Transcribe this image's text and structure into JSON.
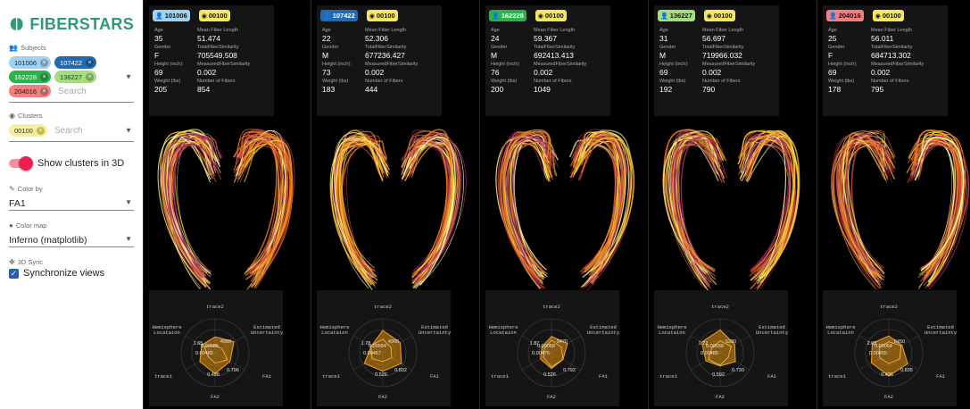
{
  "app": {
    "title": "FIBERSTARS"
  },
  "sidebar": {
    "subjects": {
      "label": "Subjects",
      "chips": [
        {
          "label": "101006",
          "color": "#9fd1f0"
        },
        {
          "label": "107422",
          "color": "#1f6ab0"
        },
        {
          "label": "162228",
          "color": "#2bb24c"
        },
        {
          "label": "136227",
          "color": "#a6dd7c"
        },
        {
          "label": "204016",
          "color": "#f08080"
        }
      ],
      "search_placeholder": "Search"
    },
    "clusters": {
      "label": "Clusters",
      "chips": [
        {
          "label": "00100",
          "color": "#f5f0a0"
        }
      ],
      "search_placeholder": "Search"
    },
    "toggle_3d": {
      "label": "Show clusters in 3D",
      "on": true
    },
    "color_by": {
      "label": "Color by",
      "value": "FA1"
    },
    "color_map": {
      "label": "Color map",
      "value": "Inferno (matplotlib)"
    },
    "sync": {
      "label": "3D Sync",
      "checkbox_label": "Synchronize views",
      "checked": true
    }
  },
  "stat_labels": {
    "age": "Age",
    "gender": "Gender",
    "height": "Height (inch):",
    "weight": "Weight (lbs)",
    "mean_len": "Mean Fiber Length",
    "total_sim": "TotalFiberSimilarity",
    "meas_sim": "MeasuredFiberSimilarity",
    "num_fibers": "Number of Fibers"
  },
  "radar_axes": {
    "top": "trace2",
    "top_right": [
      "Estimated",
      "Uncertainty"
    ],
    "top_left": [
      "Hemisphere",
      "Locataion"
    ],
    "right": "FA1",
    "left": "trace1",
    "bottom": "FA2"
  },
  "panels": [
    {
      "subject": "101006",
      "subject_color": "#9fd1f0",
      "cluster": "00100",
      "cluster_color": "#f5e663",
      "age": "35",
      "gender": "F",
      "height": "69",
      "weight": "205",
      "mean_len": "51.474",
      "total_sim": "705549.508",
      "meas_sim": "0.002",
      "num_fibers": "854",
      "radar_labels": [
        "1.65",
        "0.00585",
        "4980",
        "0.00485",
        "0.796",
        "0.498"
      ]
    },
    {
      "subject": "107422",
      "subject_color": "#1f6ab0",
      "cluster": "00100",
      "cluster_color": "#f5e663",
      "age": "22",
      "gender": "M",
      "height": "73",
      "weight": "183",
      "mean_len": "52.306",
      "total_sim": "677236.427",
      "meas_sim": "0.002",
      "num_fibers": "444",
      "radar_labels": [
        "1.78",
        "0.00584",
        "4900",
        "0.00467",
        "0.802",
        "0.526"
      ]
    },
    {
      "subject": "162228",
      "subject_color": "#2bb24c",
      "cluster": "00100",
      "cluster_color": "#f5e663",
      "age": "24",
      "gender": "M",
      "height": "76",
      "weight": "200",
      "mean_len": "59.367",
      "total_sim": "692413.413",
      "meas_sim": "0.002",
      "num_fibers": "1049",
      "radar_labels": [
        "1.87",
        "0.00058",
        "5470",
        "0.00475",
        "0.792",
        "0.526"
      ]
    },
    {
      "subject": "136227",
      "subject_color": "#a6dd7c",
      "cluster": "00100",
      "cluster_color": "#f5e663",
      "age": "31",
      "gender": "M",
      "height": "69",
      "weight": "192",
      "mean_len": "56.697",
      "total_sim": "719966.032",
      "meas_sim": "0.002",
      "num_fibers": "790",
      "radar_labels": [
        "1.72",
        "0.00598",
        "5280",
        "0.00485",
        "0.730",
        "0.592"
      ]
    },
    {
      "subject": "204016",
      "subject_color": "#f08080",
      "cluster": "00100",
      "cluster_color": "#f5e663",
      "age": "25",
      "gender": "F",
      "height": "69",
      "weight": "178",
      "mean_len": "56.011",
      "total_sim": "684713.302",
      "meas_sim": "0.002",
      "num_fibers": "795",
      "radar_labels": [
        "2.03",
        "0.00058",
        "5450",
        "0.00455",
        "0.835",
        "0.436"
      ]
    }
  ]
}
